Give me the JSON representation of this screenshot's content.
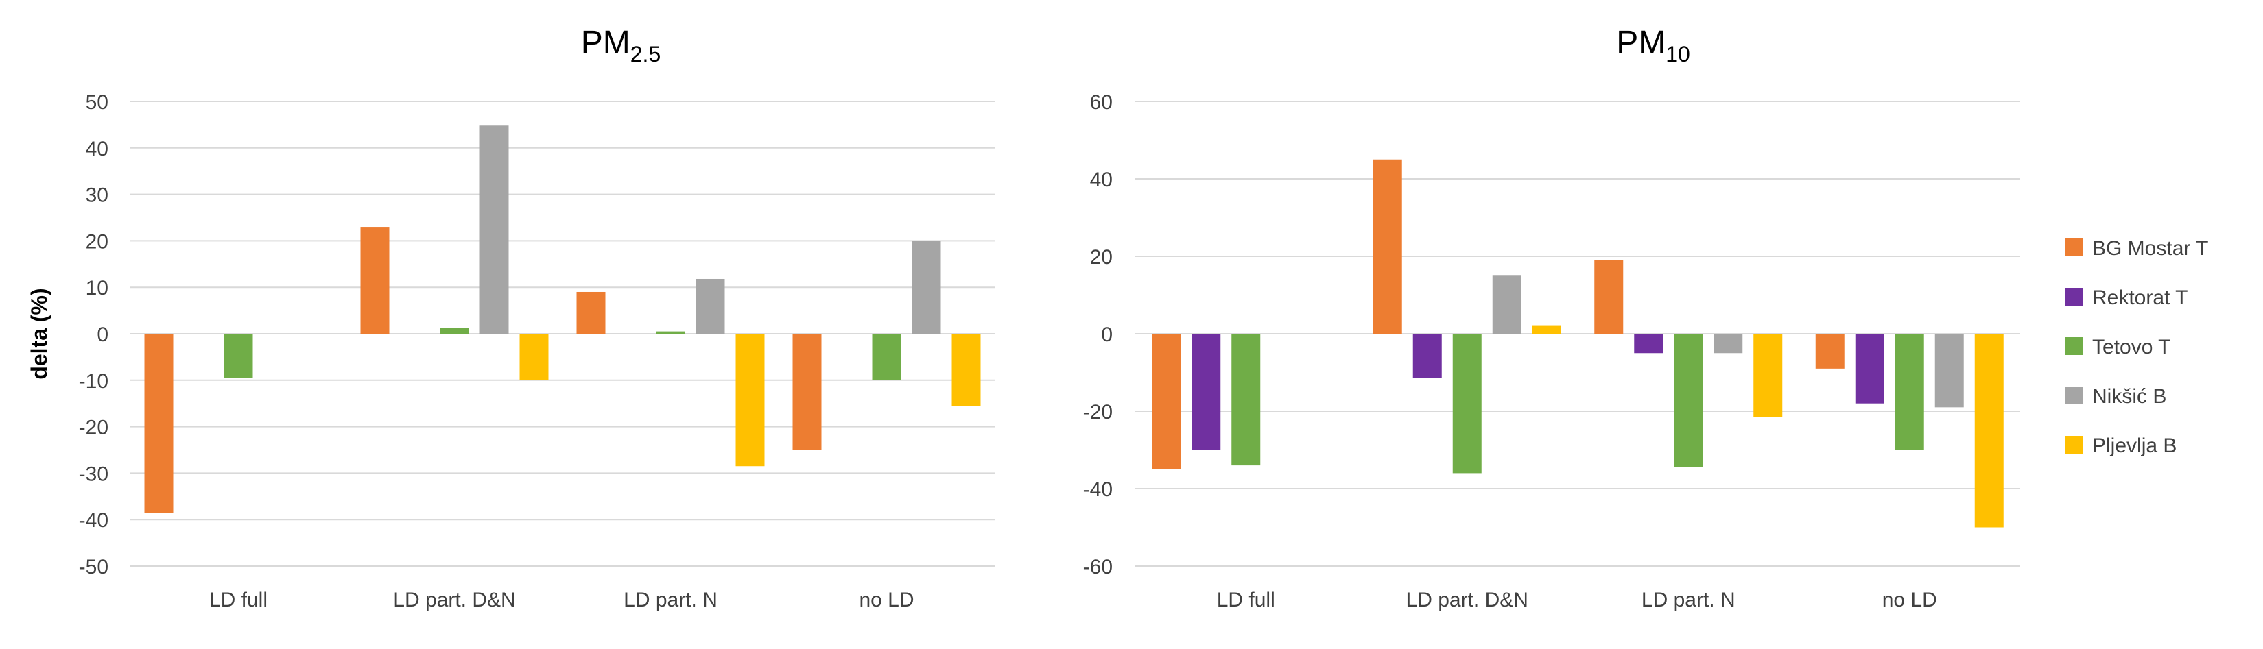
{
  "categories": [
    "LD full",
    "LD part. D&N",
    "LD part. N",
    "no LD"
  ],
  "series_style": [
    {
      "name": "BG Mostar T",
      "color": "#ED7D31"
    },
    {
      "name": "Rektorat T",
      "color": "#7030A0"
    },
    {
      "name": "Tetovo T",
      "color": "#70AD47"
    },
    {
      "name": "Nikšić B",
      "color": "#A5A5A5"
    },
    {
      "name": "Pljevlja B",
      "color": "#FFC000"
    }
  ],
  "legend": {
    "items": [
      "BG Mostar T",
      "Rektorat T",
      "Tetovo T",
      "Nikšić B",
      "Pljevlja B"
    ]
  },
  "chart_data": [
    {
      "type": "bar",
      "title": "PM",
      "title_subscript": "2.5",
      "ylabel": "delta (%)",
      "xlabel": "",
      "ylim": [
        -50,
        50
      ],
      "yticks": [
        50,
        40,
        30,
        20,
        10,
        0,
        -10,
        -20,
        -30,
        -40,
        -50
      ],
      "categories": [
        "LD full",
        "LD part. D&N",
        "LD part. N",
        "no LD"
      ],
      "series": [
        {
          "name": "BG Mostar T",
          "values": [
            -38.5,
            23,
            9,
            -25
          ]
        },
        {
          "name": "Rektorat T",
          "values": [
            null,
            null,
            null,
            null
          ]
        },
        {
          "name": "Tetovo T",
          "values": [
            -9.5,
            1.3,
            0.5,
            -10
          ]
        },
        {
          "name": "Nikšić B",
          "values": [
            null,
            44.8,
            11.8,
            20
          ]
        },
        {
          "name": "Pljevlja B",
          "values": [
            null,
            -10,
            -28.5,
            -15.5
          ]
        }
      ]
    },
    {
      "type": "bar",
      "title": "PM",
      "title_subscript": "10",
      "ylabel": "",
      "xlabel": "",
      "ylim": [
        -60,
        60
      ],
      "yticks": [
        60,
        40,
        20,
        0,
        -20,
        -40,
        -60
      ],
      "categories": [
        "LD full",
        "LD part. D&N",
        "LD part. N",
        "no LD"
      ],
      "series": [
        {
          "name": "BG Mostar T",
          "values": [
            -35,
            45,
            19,
            -9
          ]
        },
        {
          "name": "Rektorat T",
          "values": [
            -30,
            -11.5,
            -5,
            -18
          ]
        },
        {
          "name": "Tetovo T",
          "values": [
            -34,
            -36,
            -34.5,
            -30
          ]
        },
        {
          "name": "Nikšić B",
          "values": [
            null,
            15,
            -5,
            -19
          ]
        },
        {
          "name": "Pljevlja B",
          "values": [
            null,
            2.2,
            -21.5,
            -50
          ]
        }
      ]
    }
  ]
}
